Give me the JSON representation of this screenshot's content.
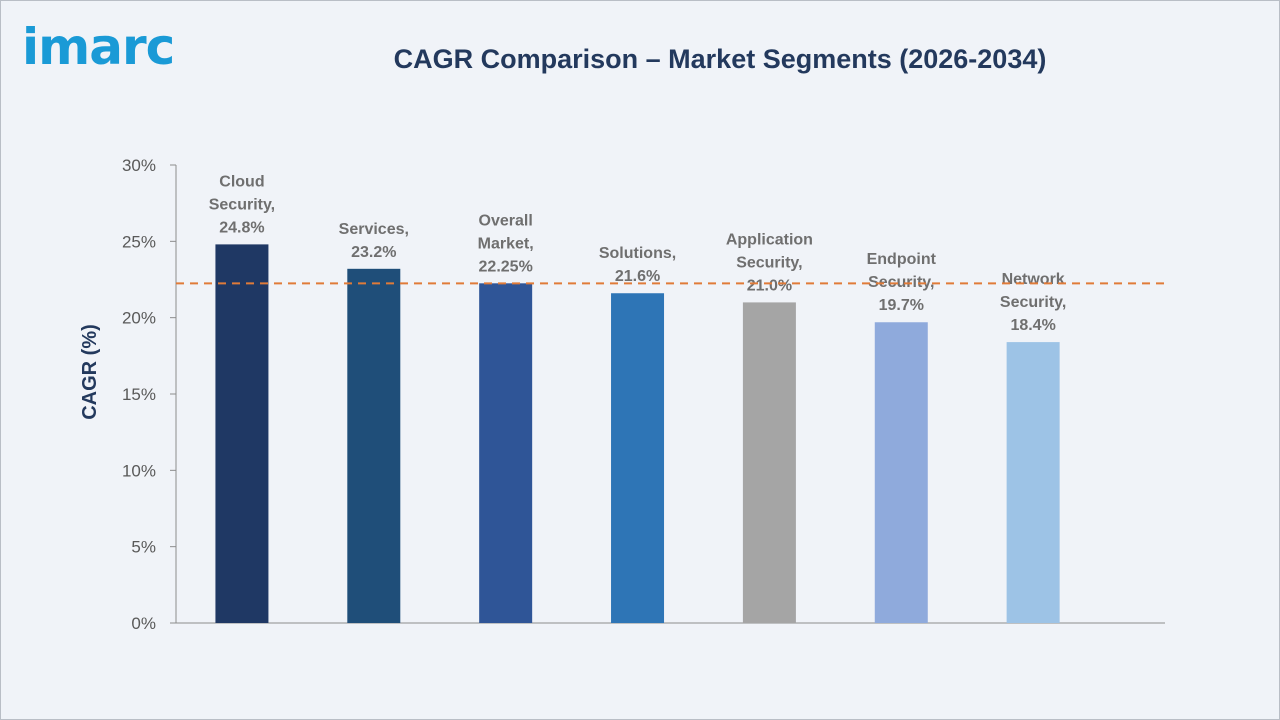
{
  "logo": {
    "text": "imarc"
  },
  "chart_data": {
    "type": "bar",
    "title": "CAGR Comparison – Market Segments (2026-2034)",
    "ylabel": "CAGR (%)",
    "xlabel": "",
    "ylim": [
      0,
      30
    ],
    "yticks": [
      0,
      5,
      10,
      15,
      20,
      25,
      30
    ],
    "ytick_labels": [
      "0%",
      "5%",
      "10%",
      "15%",
      "20%",
      "25%",
      "30%"
    ],
    "categories": [
      "Cloud Security",
      "Services",
      "Overall Market",
      "Solutions",
      "Application Security",
      "Endpoint Security",
      "Network Security"
    ],
    "values": [
      24.8,
      23.2,
      22.25,
      21.6,
      21.0,
      19.7,
      18.4
    ],
    "data_labels": [
      [
        "Cloud",
        "Security,",
        "24.8%"
      ],
      [
        "Services,",
        "23.2%"
      ],
      [
        "Overall",
        "Market,",
        "22.25%"
      ],
      [
        "Solutions,",
        "21.6%"
      ],
      [
        "Application",
        "Security,",
        "21.0%"
      ],
      [
        "Endpoint",
        "Security,",
        "19.7%"
      ],
      [
        "Network",
        "Security,",
        "18.4%"
      ]
    ],
    "colors": [
      "#1f3864",
      "#1f4e79",
      "#2f5597",
      "#2e75b6",
      "#a5a5a5",
      "#8faadc",
      "#9dc3e6"
    ],
    "reference_line": {
      "value": 22.25,
      "color": "#e07b39",
      "style": "dashed"
    },
    "grid": false,
    "legend": "none"
  }
}
